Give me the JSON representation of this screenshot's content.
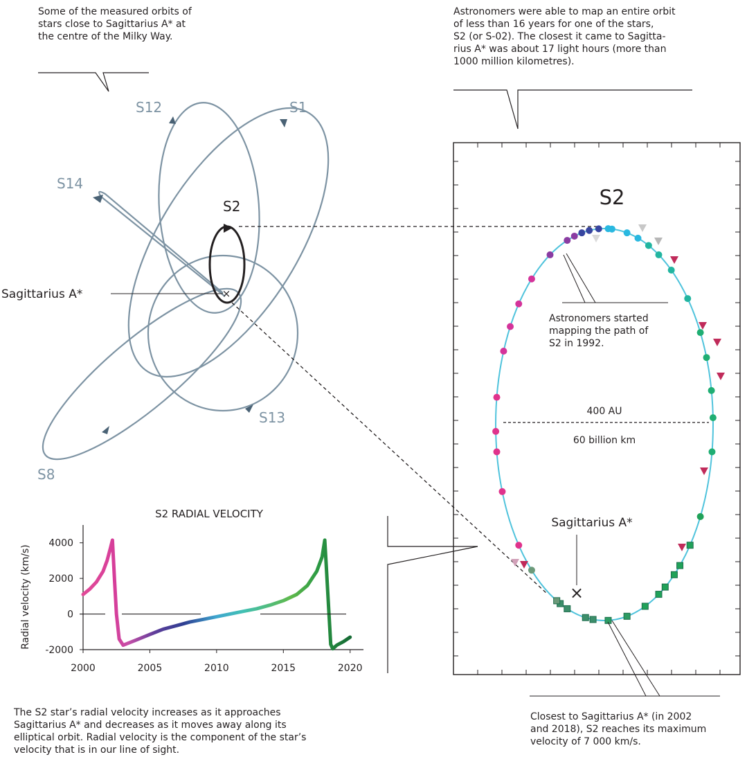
{
  "captions": {
    "orbits": [
      "Some of the measured orbits of",
      "stars close to Sagittarius A* at",
      "the centre of the Milky Way."
    ],
    "s2_orbit": [
      "Astronomers were able to map an entire orbit",
      "of less than 16 years for one of the stars,",
      "S2 (or S-02). The closest it came to Sagitta-",
      "rius A* was about 17 light hours (more than",
      "1000 million kilometres)."
    ],
    "mapping_start": [
      "Astronomers started",
      "mapping the path of",
      "S2 in 1992."
    ],
    "closest": [
      "Closest to Sagittarius A* (in 2002",
      "and 2018), S2 reaches its maximum",
      "velocity of 7 000 km/s."
    ],
    "velocity": [
      "The S2 star’s radial velocity increases as it approaches",
      "Sagittarius A* and decreases as it moves away along its",
      "elliptical orbit. Radial velocity is the component of the star’s",
      "velocity that is in our line of sight."
    ]
  },
  "left_diagram": {
    "star_labels": {
      "s12": "S12",
      "s1": "S1",
      "s14": "S14",
      "s2": "S2",
      "s13": "S13",
      "s8": "S8"
    },
    "center_label": "Sagittarius A*",
    "center_marker": "×",
    "orbit_color": "#7d93a3",
    "s2_color": "#231f20"
  },
  "right_diagram": {
    "title": "S2",
    "center_label": "Sagittarius A*",
    "center_marker": "×",
    "width_label_au": "400 AU",
    "width_label_km": "60 billion km",
    "orbit_color": "#4fc3dc"
  },
  "chart_data": {
    "type": "line",
    "title": "S2 RADIAL VELOCITY",
    "xlabel": "",
    "ylabel": "Radial velocity (km/s)",
    "xlim": [
      2000,
      2021
    ],
    "ylim": [
      -2000,
      5000
    ],
    "xticks": [
      2000,
      2005,
      2010,
      2015,
      2020
    ],
    "yticks": [
      -2000,
      0,
      2000,
      4000
    ],
    "series": [
      {
        "x": [
          2000.0,
          2000.5,
          2001.0,
          2001.5,
          2001.8,
          2002.05,
          2002.2,
          2002.35,
          2002.5,
          2002.7,
          2003.0,
          2004.0,
          2005.0,
          2006.0,
          2007.0,
          2008.0,
          2009.0,
          2010.0,
          2011.0,
          2012.0,
          2013.0,
          2014.0,
          2015.0,
          2016.0,
          2016.8,
          2017.5,
          2017.9,
          2018.1,
          2018.25,
          2018.4,
          2018.55,
          2018.7,
          2019.0,
          2019.5,
          2020.0
        ],
        "y": [
          1100,
          1400,
          1800,
          2400,
          3000,
          3700,
          4150,
          2000,
          0,
          -1400,
          -1750,
          -1450,
          -1150,
          -850,
          -650,
          -450,
          -300,
          -150,
          0,
          150,
          300,
          500,
          750,
          1100,
          1600,
          2400,
          3200,
          4150,
          2200,
          200,
          -1700,
          -1950,
          -1750,
          -1550,
          -1300
        ]
      }
    ]
  }
}
